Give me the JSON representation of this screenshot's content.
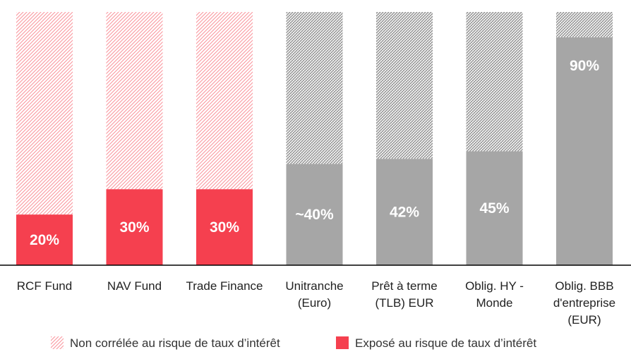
{
  "chart_data": {
    "type": "bar",
    "stacked": true,
    "categories": [
      [
        "RCF Fund"
      ],
      [
        "NAV Fund"
      ],
      [
        "Trade Finance"
      ],
      [
        "Unitranche",
        "(Euro)"
      ],
      [
        "Prêt à terme",
        "(TLB) EUR"
      ],
      [
        "Oblig. HY -",
        "Monde"
      ],
      [
        "Oblig. BBB",
        "d'entreprise",
        "(EUR)"
      ]
    ],
    "series": [
      {
        "name": "Exposé au risque de taux d’intérêt",
        "values": [
          20,
          30,
          30,
          40,
          42,
          45,
          90
        ],
        "labels": [
          "20%",
          "30%",
          "30%",
          "~40%",
          "42%",
          "45%",
          "90%"
        ],
        "colors": [
          "#f5404f",
          "#f5404f",
          "#f5404f",
          "#a6a6a6",
          "#a6a6a6",
          "#a6a6a6",
          "#a6a6a6"
        ]
      },
      {
        "name": "Non corrélée au risque de taux d’intérêt",
        "values": [
          80,
          70,
          70,
          60,
          58,
          55,
          10
        ],
        "pattern_colors": [
          "#f5404f",
          "#f5404f",
          "#f5404f",
          "#8c8c8c",
          "#8c8c8c",
          "#8c8c8c",
          "#8c8c8c"
        ],
        "pattern": "hatched"
      }
    ],
    "ylim": [
      0,
      100
    ],
    "grid": false,
    "legend": "bottom",
    "legend_items": [
      {
        "label": "Non corrélée au risque de taux d’intérêt",
        "style": "hatched",
        "color": "#f5404f"
      },
      {
        "label": "Exposé au risque de taux d’intérêt",
        "style": "solid",
        "color": "#f5404f"
      }
    ],
    "axis_color": "#000000"
  }
}
